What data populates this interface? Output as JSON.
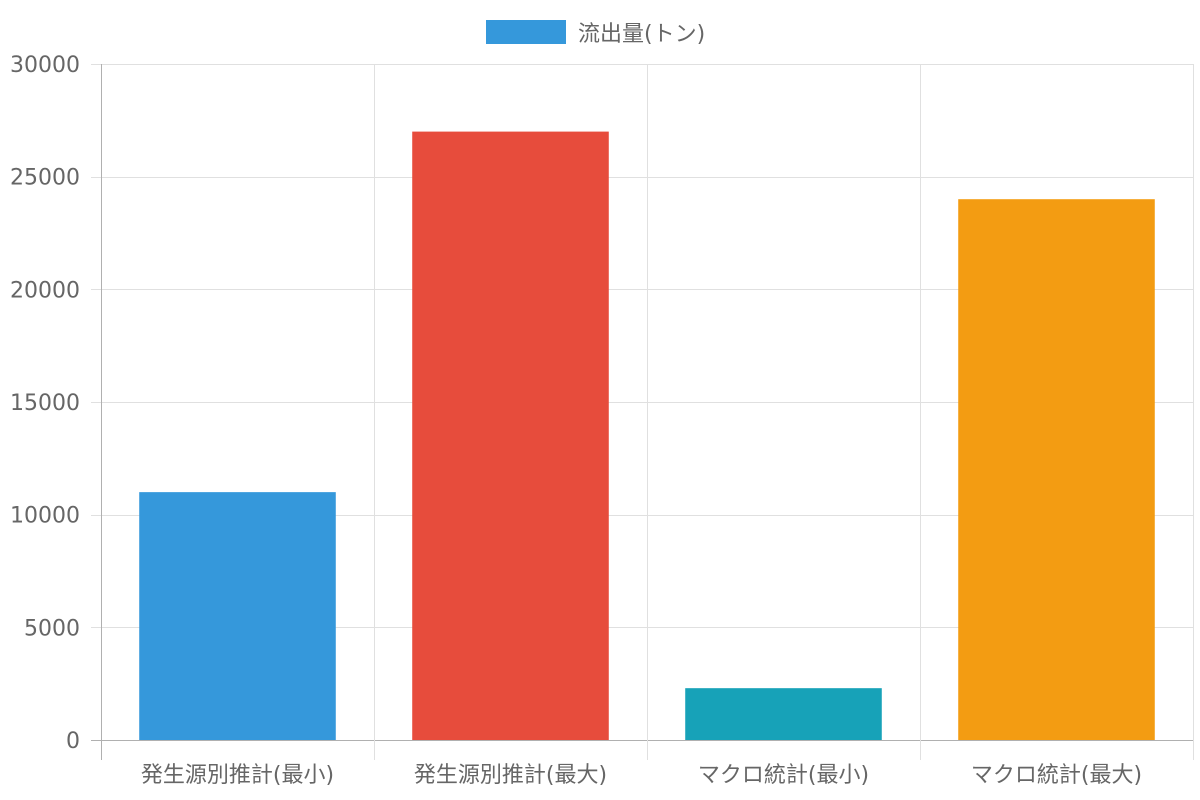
{
  "legend": {
    "label": "流出量(トン)",
    "color": "#3598db"
  },
  "chart_data": {
    "type": "bar",
    "categories": [
      "発生源別推計(最小)",
      "発生源別推計(最大)",
      "マクロ統計(最小)",
      "マクロ統計(最大)"
    ],
    "series": [
      {
        "name": "流出量(トン)",
        "values": [
          11000,
          27000,
          2300,
          24000
        ],
        "colors": [
          "#3598db",
          "#e74c3c",
          "#17a2b8",
          "#f39c12"
        ]
      }
    ],
    "ylim": [
      0,
      30000
    ],
    "yticks": [
      0,
      5000,
      10000,
      15000,
      20000,
      25000,
      30000
    ],
    "grid": true,
    "legend_position": "top"
  }
}
